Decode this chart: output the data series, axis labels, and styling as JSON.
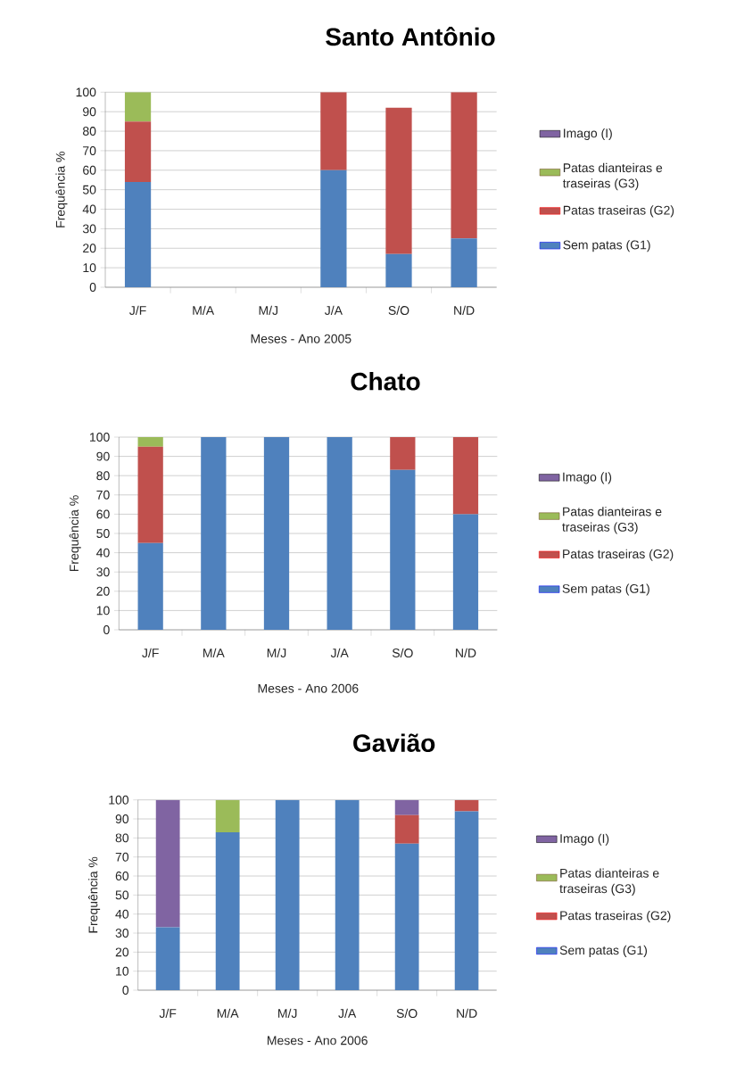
{
  "chart_data": [
    {
      "type": "bar",
      "stacked": true,
      "title": "Santo Antônio",
      "xlabel": "Meses  - Ano 2005",
      "ylabel": "Frequência %",
      "categories": [
        "J/F",
        "M/A",
        "M/J",
        "J/A",
        "S/O",
        "N/D"
      ],
      "ylim": [
        0,
        100
      ],
      "yticks": [
        0,
        10,
        20,
        30,
        40,
        50,
        60,
        70,
        80,
        90,
        100
      ],
      "grid": "y",
      "legend": "right",
      "series": [
        {
          "name": "Sem patas (G1)",
          "color": "#4f81bd",
          "values": [
            54,
            0,
            0,
            60,
            17,
            25
          ]
        },
        {
          "name": "Patas traseiras (G2)",
          "color": "#c0504d",
          "values": [
            31,
            0,
            0,
            40,
            75,
            75
          ]
        },
        {
          "name": "Patas dianteiras e traseiras (G3)",
          "color": "#9bbb59",
          "values": [
            15,
            0,
            0,
            0,
            0,
            0
          ]
        },
        {
          "name": "Imago (I)",
          "color": "#8064a2",
          "values": [
            0,
            0,
            0,
            0,
            0,
            0
          ]
        }
      ]
    },
    {
      "type": "bar",
      "stacked": true,
      "title": "Chato",
      "xlabel": "Meses - Ano 2006",
      "ylabel": "Frequência %",
      "categories": [
        "J/F",
        "M/A",
        "M/J",
        "J/A",
        "S/O",
        "N/D"
      ],
      "ylim": [
        0,
        100
      ],
      "yticks": [
        0,
        10,
        20,
        30,
        40,
        50,
        60,
        70,
        80,
        90,
        100
      ],
      "grid": "y",
      "legend": "right",
      "series": [
        {
          "name": "Sem patas (G1)",
          "color": "#4f81bd",
          "values": [
            45,
            100,
            100,
            100,
            83,
            60
          ]
        },
        {
          "name": "Patas traseiras (G2)",
          "color": "#c0504d",
          "values": [
            50,
            0,
            0,
            0,
            17,
            40
          ]
        },
        {
          "name": "Patas dianteiras e traseiras (G3)",
          "color": "#9bbb59",
          "values": [
            5,
            0,
            0,
            0,
            0,
            0
          ]
        },
        {
          "name": "Imago (I)",
          "color": "#8064a2",
          "values": [
            0,
            0,
            0,
            0,
            0,
            0
          ]
        }
      ]
    },
    {
      "type": "bar",
      "stacked": true,
      "title": "Gavião",
      "xlabel": "Meses - Ano 2006",
      "ylabel": "Frequência %",
      "categories": [
        "J/F",
        "M/A",
        "M/J",
        "J/A",
        "S/O",
        "N/D"
      ],
      "ylim": [
        0,
        100
      ],
      "yticks": [
        0,
        10,
        20,
        30,
        40,
        50,
        60,
        70,
        80,
        90,
        100
      ],
      "grid": "y",
      "legend": "right",
      "series": [
        {
          "name": "Sem patas (G1)",
          "color": "#4f81bd",
          "values": [
            33,
            83,
            100,
            100,
            77,
            94
          ]
        },
        {
          "name": "Patas traseiras (G2)",
          "color": "#c0504d",
          "values": [
            0,
            0,
            0,
            0,
            15,
            6
          ]
        },
        {
          "name": "Patas dianteiras e traseiras (G3)",
          "color": "#9bbb59",
          "values": [
            0,
            17,
            0,
            0,
            0,
            0
          ]
        },
        {
          "name": "Imago (I)",
          "color": "#8064a2",
          "values": [
            67,
            0,
            0,
            0,
            8,
            0
          ]
        }
      ]
    }
  ]
}
